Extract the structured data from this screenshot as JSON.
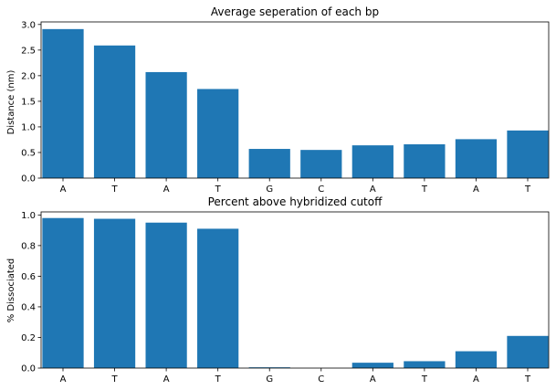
{
  "chart_data": [
    {
      "type": "bar",
      "title": "Average seperation of each bp",
      "xlabel": "",
      "ylabel": "Distance (nm)",
      "categories": [
        "A",
        "T",
        "A",
        "T",
        "G",
        "C",
        "A",
        "T",
        "A",
        "T"
      ],
      "values": [
        2.91,
        2.59,
        2.07,
        1.74,
        0.57,
        0.55,
        0.64,
        0.66,
        0.76,
        0.93
      ],
      "ylim": [
        0,
        3.05
      ],
      "yticks": [
        0.0,
        0.5,
        1.0,
        1.5,
        2.0,
        2.5,
        3.0
      ],
      "ytick_labels": [
        "0.0",
        "0.5",
        "1.0",
        "1.5",
        "2.0",
        "2.5",
        "3.0"
      ],
      "bar_color": "#1f77b4",
      "grid": false
    },
    {
      "type": "bar",
      "title": "Percent above hybridized cutoff",
      "xlabel": "",
      "ylabel": "% Dissociated",
      "categories": [
        "A",
        "T",
        "A",
        "T",
        "G",
        "C",
        "A",
        "T",
        "A",
        "T"
      ],
      "values": [
        0.98,
        0.975,
        0.95,
        0.91,
        0.005,
        0.0,
        0.035,
        0.045,
        0.11,
        0.21
      ],
      "ylim": [
        0,
        1.02
      ],
      "yticks": [
        0.0,
        0.2,
        0.4,
        0.6,
        0.8,
        1.0
      ],
      "ytick_labels": [
        "0.0",
        "0.2",
        "0.4",
        "0.6",
        "0.8",
        "1.0"
      ],
      "bar_color": "#1f77b4",
      "grid": false
    }
  ]
}
